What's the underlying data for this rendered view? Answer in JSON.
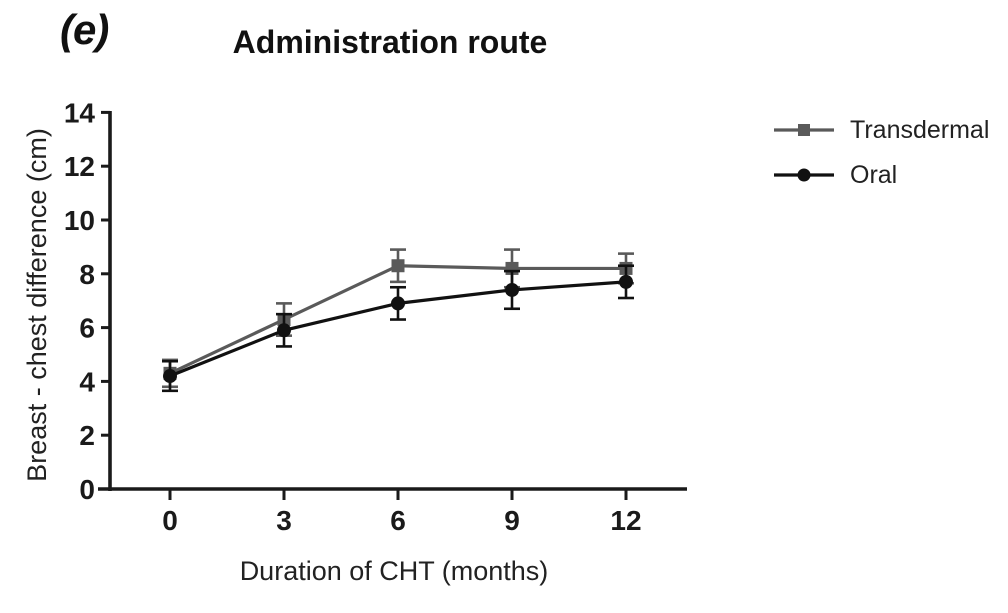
{
  "panel_label": "(e)",
  "colors": {
    "axis": "#1a1a1a",
    "transdermal": "#5a5a5a",
    "oral": "#111111",
    "background": "#ffffff"
  },
  "chart_data": {
    "type": "line",
    "title": "Administration route",
    "xlabel": "Duration of CHT (months)",
    "ylabel": "Breast - chest difference (cm)",
    "x": [
      0,
      3,
      6,
      9,
      12
    ],
    "xticks": [
      "0",
      "3",
      "6",
      "9",
      "12"
    ],
    "yticks": [
      0,
      2,
      4,
      6,
      8,
      10,
      12,
      14
    ],
    "xlim": [
      -1.9,
      13.6
    ],
    "ylim": [
      0,
      14
    ],
    "grid": false,
    "error_bars": "symmetric",
    "legend_position": "right-outside",
    "series": [
      {
        "name": "Transdermal",
        "marker": "square",
        "color": "#5a5a5a",
        "values": [
          4.3,
          6.3,
          8.3,
          8.2,
          8.2
        ],
        "errors": [
          0.5,
          0.6,
          0.6,
          0.7,
          0.55
        ]
      },
      {
        "name": "Oral",
        "marker": "circle",
        "color": "#111111",
        "values": [
          4.2,
          5.9,
          6.9,
          7.4,
          7.7
        ],
        "errors": [
          0.55,
          0.6,
          0.6,
          0.7,
          0.6
        ]
      }
    ]
  }
}
